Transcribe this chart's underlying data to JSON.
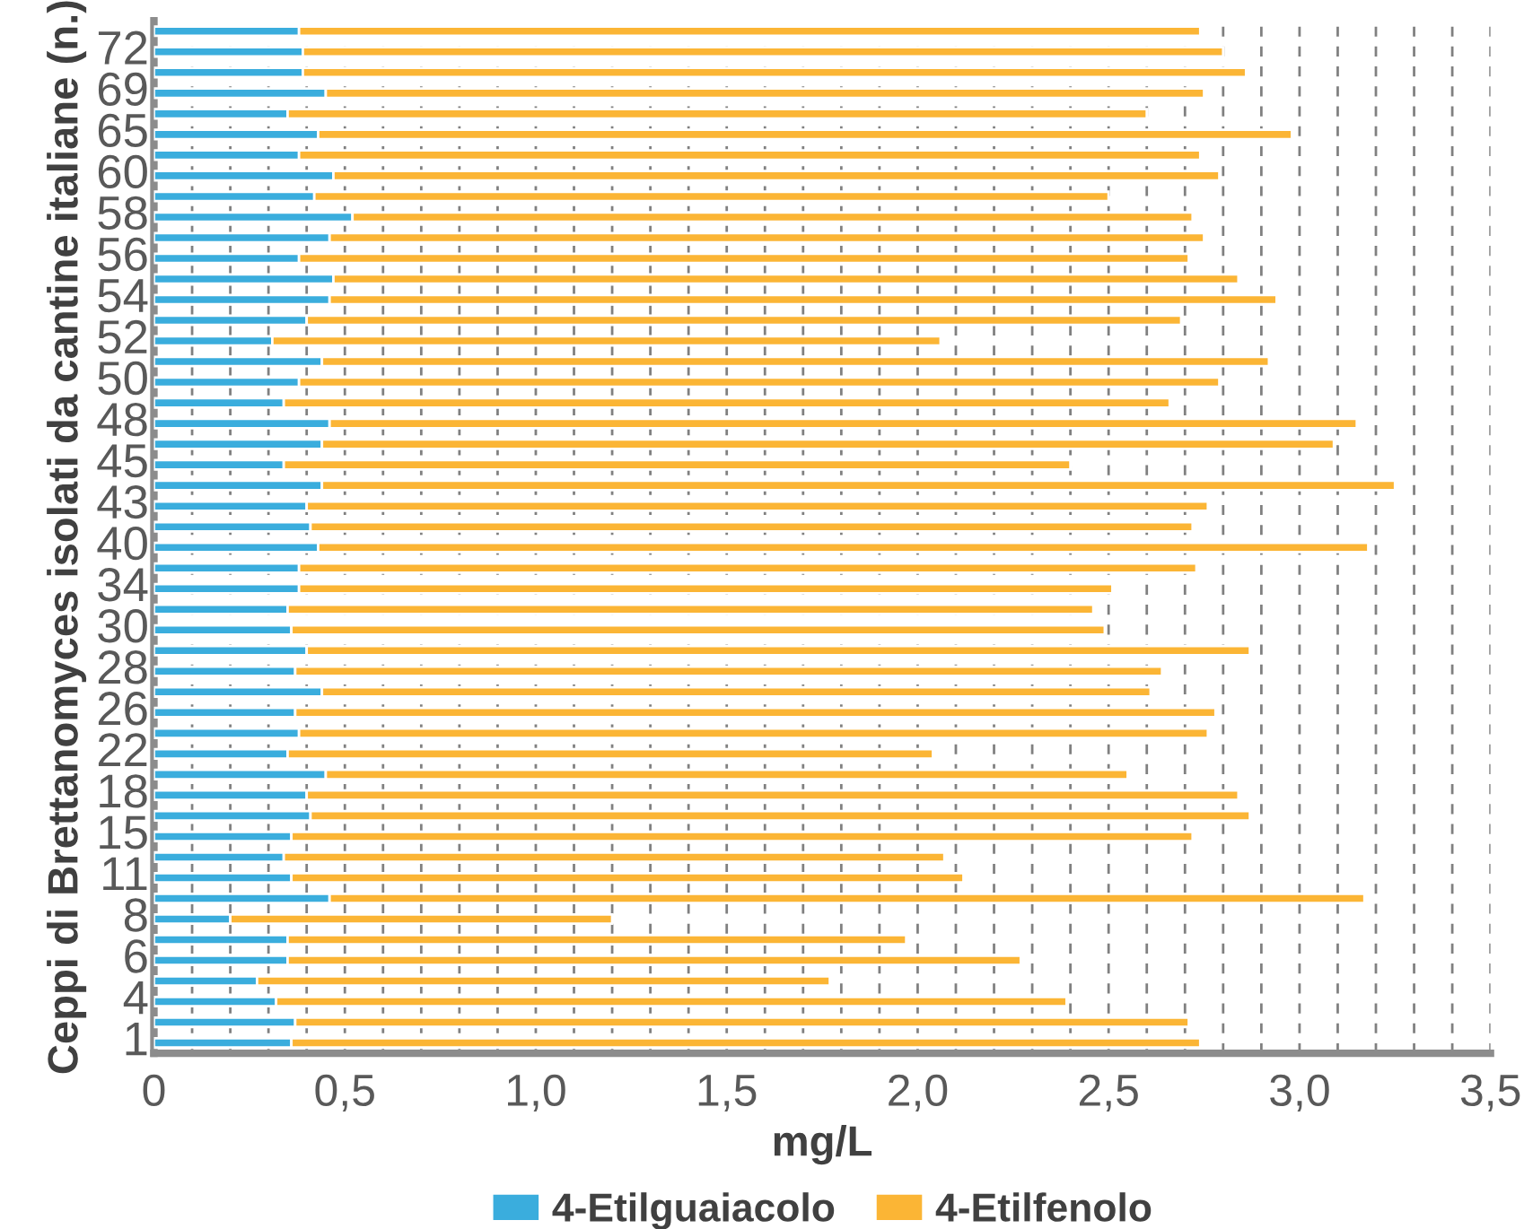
{
  "chart_data": {
    "type": "bar",
    "orientation": "horizontal",
    "stacked": true,
    "xlabel": "mg/L",
    "ylabel": "Ceppi di Brettanomyces isolati da cantine italiane (n.)",
    "categories": [
      null,
      "72",
      null,
      "69",
      null,
      "65",
      null,
      "60",
      null,
      "58",
      null,
      "56",
      null,
      "54",
      null,
      "52",
      null,
      "50",
      null,
      "48",
      null,
      "45",
      null,
      "43",
      null,
      "40",
      null,
      "34",
      null,
      "30",
      null,
      "28",
      null,
      "26",
      null,
      "22",
      null,
      "18",
      null,
      "15",
      null,
      "11",
      null,
      "8",
      null,
      "6",
      null,
      "4",
      null,
      "1"
    ],
    "series": [
      {
        "name": "4-Etilguaiacolo",
        "color": "#3aaddd",
        "values": [
          0.38,
          0.39,
          0.39,
          0.45,
          0.35,
          0.43,
          0.38,
          0.47,
          0.42,
          0.52,
          0.46,
          0.38,
          0.47,
          0.46,
          0.4,
          0.31,
          0.44,
          0.38,
          0.34,
          0.46,
          0.44,
          0.34,
          0.44,
          0.4,
          0.41,
          0.43,
          0.38,
          0.38,
          0.35,
          0.36,
          0.4,
          0.37,
          0.44,
          0.37,
          0.38,
          0.35,
          0.45,
          0.4,
          0.41,
          0.36,
          0.34,
          0.36,
          0.46,
          0.2,
          0.35,
          0.35,
          0.27,
          0.32,
          0.37,
          0.36
        ]
      },
      {
        "name": "4-Etilfenolo",
        "color": "#fbb535",
        "values": [
          2.36,
          2.41,
          2.47,
          2.3,
          2.25,
          2.55,
          2.36,
          2.32,
          2.08,
          2.2,
          2.29,
          2.33,
          2.37,
          2.48,
          2.29,
          1.75,
          2.48,
          2.41,
          2.32,
          2.69,
          2.65,
          2.06,
          2.81,
          2.36,
          2.31,
          2.75,
          2.35,
          2.13,
          2.11,
          2.13,
          2.47,
          2.27,
          2.17,
          2.41,
          2.38,
          1.69,
          2.1,
          2.44,
          2.46,
          2.36,
          1.73,
          1.76,
          2.71,
          1.0,
          1.62,
          1.92,
          1.5,
          2.07,
          2.34,
          2.38
        ]
      }
    ],
    "xlim": [
      0,
      3.5
    ],
    "xticks": [
      0,
      {
        "value": 0.1,
        "label": null
      },
      {
        "value": 0.2,
        "label": null
      },
      {
        "value": 0.3,
        "label": null
      },
      {
        "value": 0.4,
        "label": null
      },
      {
        "value": 0.5,
        "label": "0,5"
      },
      {
        "value": 0.6,
        "label": null
      },
      {
        "value": 0.7,
        "label": null
      },
      {
        "value": 0.8,
        "label": null
      },
      {
        "value": 0.9,
        "label": null
      },
      {
        "value": 1.0,
        "label": "1,0"
      },
      {
        "value": 1.1,
        "label": null
      },
      {
        "value": 1.2,
        "label": null
      },
      {
        "value": 1.3,
        "label": null
      },
      {
        "value": 1.4,
        "label": null
      },
      {
        "value": 1.5,
        "label": "1,5"
      },
      {
        "value": 1.6,
        "label": null
      },
      {
        "value": 1.7,
        "label": null
      },
      {
        "value": 1.8,
        "label": null
      },
      {
        "value": 1.9,
        "label": null
      },
      {
        "value": 2.0,
        "label": "2,0"
      },
      {
        "value": 2.1,
        "label": null
      },
      {
        "value": 2.2,
        "label": null
      },
      {
        "value": 2.3,
        "label": null
      },
      {
        "value": 2.4,
        "label": null
      },
      {
        "value": 2.5,
        "label": "2,5"
      },
      {
        "value": 2.6,
        "label": null
      },
      {
        "value": 2.7,
        "label": null
      },
      {
        "value": 2.8,
        "label": null
      },
      {
        "value": 2.9,
        "label": null
      },
      {
        "value": 3.0,
        "label": "3,0"
      },
      {
        "value": 3.1,
        "label": null
      },
      {
        "value": 3.2,
        "label": null
      },
      {
        "value": 3.3,
        "label": null
      },
      {
        "value": 3.4,
        "label": null
      },
      {
        "value": 3.5,
        "label": "3,5"
      }
    ],
    "grid": "x",
    "legend": "bottom"
  }
}
